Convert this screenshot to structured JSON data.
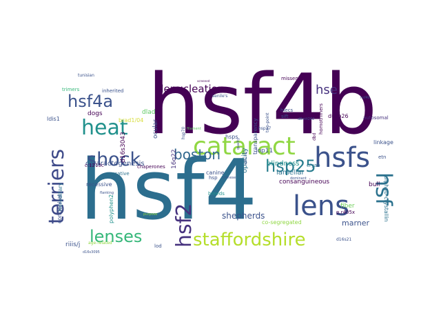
{
  "palette": {
    "dark_purple": "#440154",
    "indigo": "#3b528b",
    "teal_blue": "#2c728e",
    "teal": "#21918c",
    "green": "#28ae80",
    "lime": "#90d743",
    "yellow": "#d7dd3a"
  },
  "words": [
    {
      "text": "hsf4b",
      "color": "#440154"
    },
    {
      "text": "hsf4",
      "color": "#2c6e8e"
    },
    {
      "text": "cataract",
      "color": "#90d743"
    },
    {
      "text": "hsfs",
      "color": "#3b528b"
    },
    {
      "text": "lens",
      "color": "#3b528b"
    },
    {
      "text": "staffordshire",
      "color": "#b5de2b"
    },
    {
      "text": "shock",
      "color": "#3b528b"
    },
    {
      "text": "heat",
      "color": "#21918c"
    },
    {
      "text": "hsf4a",
      "color": "#3b528b"
    },
    {
      "text": "hsf2",
      "color": "#46327e"
    },
    {
      "text": "terriers",
      "color": "#3e4a89"
    },
    {
      "text": "lenses",
      "color": "#35b779"
    },
    {
      "text": "boston",
      "color": "#31688e"
    },
    {
      "text": "hsp25",
      "color": "#287c8e"
    },
    {
      "text": "hsf",
      "color": "#2c728e"
    },
    {
      "text": "hse",
      "color": "#46327e"
    },
    {
      "text": "denucleation",
      "color": "#440154"
    },
    {
      "text": "cataractogenesis",
      "color": "#3b528b"
    },
    {
      "text": "blindness",
      "color": "#21918c"
    },
    {
      "text": "lamellar",
      "color": "#2c728e"
    },
    {
      "text": "shepherds",
      "color": "#3b528b"
    },
    {
      "text": "marner",
      "color": "#3b528b"
    },
    {
      "text": "consanguineous",
      "color": "#440154"
    },
    {
      "text": "opacity",
      "color": "#2c728e"
    },
    {
      "text": "transparency",
      "color": "#3b528b"
    },
    {
      "text": "fiber",
      "color": "#6ece58"
    },
    {
      "text": "bull",
      "color": "#440154"
    },
    {
      "text": "lop11",
      "color": "#3b528b"
    },
    {
      "text": "hsps",
      "color": "#3b528b"
    },
    {
      "text": "dusp26",
      "color": "#440154"
    },
    {
      "text": "autosomal",
      "color": "#46327e"
    },
    {
      "text": "linkage",
      "color": "#3b528b"
    },
    {
      "text": "etn",
      "color": "#3b528b"
    },
    {
      "text": "recessive",
      "color": "#3b528b"
    },
    {
      "text": "dogs",
      "color": "#440154"
    },
    {
      "text": "dlad",
      "color": "#5ec962"
    },
    {
      "text": "ldis1",
      "color": "#3b528b"
    },
    {
      "text": "c.1213c",
      "color": "#440154"
    },
    {
      "text": "causative",
      "color": "#2c728e"
    },
    {
      "text": "chaperones",
      "color": "#440154"
    },
    {
      "text": "d16s3043",
      "color": "#440154"
    },
    {
      "text": "ocular",
      "color": "#3b528b"
    },
    {
      "text": "16q22",
      "color": "#46327e"
    },
    {
      "text": "canine",
      "color": "#3b528b"
    },
    {
      "text": "breeds",
      "color": "#21918c"
    },
    {
      "text": "hsp",
      "color": "#3b528b"
    },
    {
      "text": "hereditary",
      "color": "#2c728e"
    },
    {
      "text": "congenital",
      "color": "#3b528b"
    },
    {
      "text": "riiis/j",
      "color": "#3b528b"
    },
    {
      "text": "polyphen2",
      "color": "#21918c"
    },
    {
      "text": "lod",
      "color": "#3b528b"
    },
    {
      "text": "hsp70",
      "color": "#3b528b"
    },
    {
      "text": "inherited",
      "color": "#3b528b"
    },
    {
      "text": "trimers",
      "color": "#35b779"
    },
    {
      "text": "brad1/04",
      "color": "#d7dd3a"
    },
    {
      "text": "co-segregated",
      "color": "#90d743"
    },
    {
      "text": "p.r405x",
      "color": "#440154"
    },
    {
      "text": "d16s21",
      "color": "#3b528b"
    },
    {
      "text": "cryab",
      "color": "#2c728e"
    },
    {
      "text": "alphab-crystallin",
      "color": "#2c728e"
    },
    {
      "text": "missense",
      "color": "#440154"
    },
    {
      "text": "homotrimers",
      "color": "#440154"
    },
    {
      "text": "dbd",
      "color": "#440154"
    },
    {
      "text": "hlecs",
      "color": "#3b528b"
    },
    {
      "text": "sift",
      "color": "#3b528b"
    },
    {
      "text": "two-point",
      "color": "#3b528b"
    },
    {
      "text": "d8mit242",
      "color": "#3b528b"
    },
    {
      "text": "tunisian",
      "color": "#3b528b"
    },
    {
      "text": "purpose",
      "color": "#90d743"
    },
    {
      "text": "age-related",
      "color": "#90d743"
    },
    {
      "text": "d16s3095",
      "color": "#3b528b"
    },
    {
      "text": "screened",
      "color": "#440154"
    },
    {
      "text": "flanking",
      "color": "#3b528b"
    },
    {
      "text": "chinese",
      "color": "#3b528b"
    },
    {
      "text": "splicing",
      "color": "#3b528b"
    },
    {
      "text": "dominant",
      "color": "#3b528b"
    },
    {
      "text": "hsp27",
      "color": "#3b528b"
    },
    {
      "text": "quality",
      "color": "#3b528b"
    },
    {
      "text": "senile's",
      "color": "#3b528b"
    },
    {
      "text": "filament",
      "color": "#5ec962"
    },
    {
      "text": "hsf4b",
      "color": "#3b528b"
    }
  ]
}
